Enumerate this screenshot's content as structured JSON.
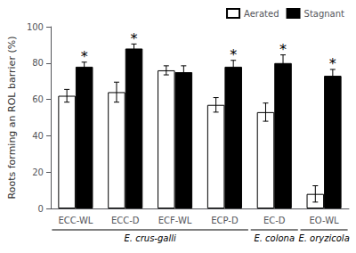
{
  "chart_data": {
    "type": "bar",
    "categories": [
      "ECC-WL",
      "ECC-D",
      "ECF-WL",
      "ECP-D",
      "EC-D",
      "EO-WL"
    ],
    "series": [
      {
        "name": "Aerated",
        "color": "#ffffff",
        "values": [
          62,
          64,
          76,
          57,
          53,
          8
        ],
        "errors": [
          3.5,
          5.5,
          2.5,
          4.0,
          5.0,
          4.5
        ]
      },
      {
        "name": "Stagnant",
        "color": "#000000",
        "values": [
          78,
          88,
          75,
          78,
          80,
          73
        ],
        "errors": [
          2.5,
          2.5,
          3.5,
          3.5,
          4.5,
          3.5
        ]
      }
    ],
    "ylabel": "Roots forming an ROL barrier (%)",
    "ylim": [
      0,
      100
    ],
    "yticks": [
      0,
      20,
      40,
      60,
      80,
      100
    ],
    "grid": false,
    "legend": "upper right",
    "annotations": [
      {
        "text": "*",
        "category": "ECC-WL",
        "series": "Stagnant"
      },
      {
        "text": "*",
        "category": "ECC-D",
        "series": "Stagnant"
      },
      {
        "text": "*",
        "category": "ECP-D",
        "series": "Stagnant"
      },
      {
        "text": "*",
        "category": "EC-D",
        "series": "Stagnant"
      },
      {
        "text": "*",
        "category": "EO-WL",
        "series": "Stagnant"
      }
    ],
    "category_groups": [
      {
        "label": "E. crus-galli",
        "categories": [
          "ECC-WL",
          "ECC-D",
          "ECF-WL",
          "ECP-D"
        ]
      },
      {
        "label": "E. colona",
        "categories": [
          "EC-D"
        ]
      },
      {
        "label": "E. oryzicola",
        "categories": [
          "EO-WL"
        ]
      }
    ]
  }
}
